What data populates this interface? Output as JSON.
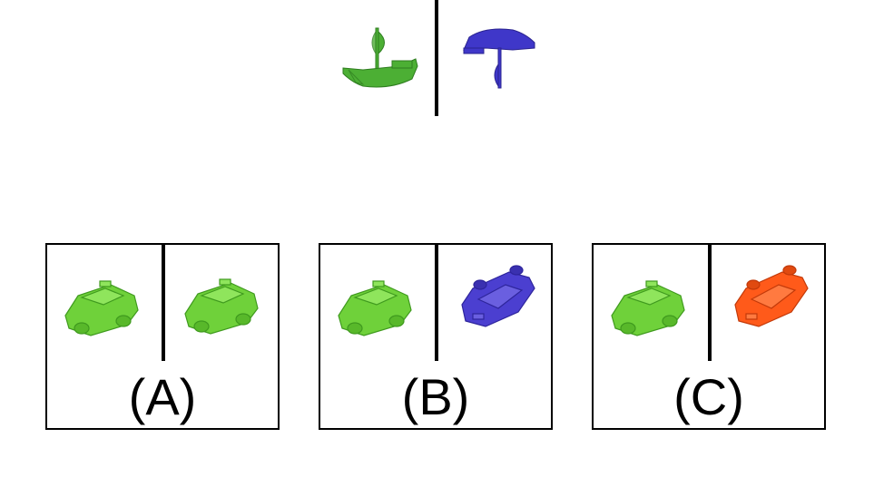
{
  "example": {
    "left_icon": "ship-icon",
    "right_icon": "ship-upside-down-icon",
    "left_color": "#4caf34",
    "right_color": "#3f37c9"
  },
  "options": [
    {
      "label": "(A)",
      "left_icon": "car-icon",
      "right_icon": "car-icon",
      "left_color": "#6fd13a",
      "right_color": "#6fd13a"
    },
    {
      "label": "(B)",
      "left_icon": "car-icon",
      "right_icon": "car-upside-down-icon",
      "left_color": "#6fd13a",
      "right_color": "#4b3fd0"
    },
    {
      "label": "(C)",
      "left_icon": "car-icon",
      "right_icon": "car-upside-down-icon",
      "left_color": "#6fd13a",
      "right_color": "#ff5a1a"
    }
  ]
}
